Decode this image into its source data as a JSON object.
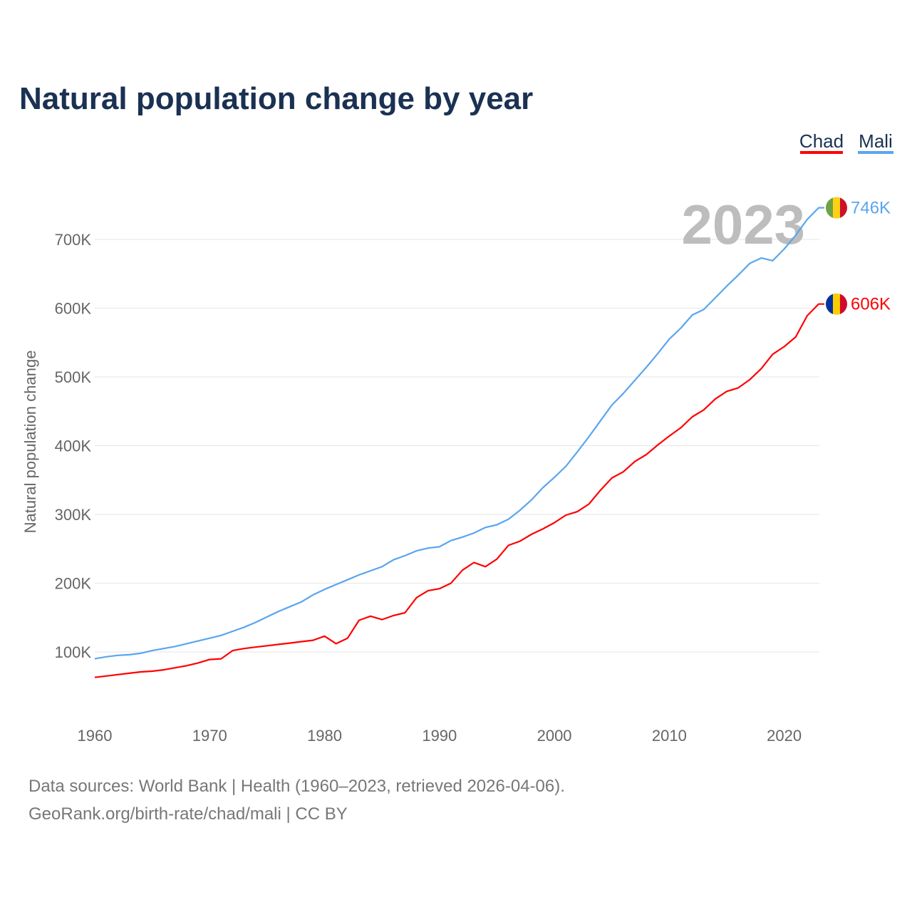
{
  "chart_data": {
    "type": "line",
    "title": "Natural population change by year",
    "xlabel": "",
    "ylabel": "Natural population change",
    "xlim": [
      1960,
      2023
    ],
    "ylim": [
      0,
      760000
    ],
    "x_ticks": [
      1960,
      1970,
      1980,
      1990,
      2000,
      2010,
      2020
    ],
    "y_ticks": [
      100000,
      200000,
      300000,
      400000,
      500000,
      600000,
      700000
    ],
    "y_tick_labels": [
      "100K",
      "200K",
      "300K",
      "400K",
      "500K",
      "600K",
      "700K"
    ],
    "x_tick_labels": [
      "1960",
      "1970",
      "1980",
      "1990",
      "2000",
      "2010",
      "2020"
    ],
    "grid": "horizontal",
    "legend_position": "top-right",
    "year_watermark": "2023",
    "start_year": 1960,
    "series": [
      {
        "name": "Chad",
        "color": "#ff0000",
        "end_label": "606K",
        "flag_colors": [
          "#0033a0",
          "#fecb00",
          "#d00a2e"
        ],
        "values": [
          63000,
          65000,
          67000,
          69000,
          71000,
          72000,
          74000,
          77000,
          80000,
          84000,
          89000,
          90000,
          102000,
          105000,
          107000,
          109000,
          111000,
          113000,
          115000,
          117000,
          123000,
          112000,
          120000,
          146000,
          152000,
          147000,
          153000,
          157000,
          179000,
          189000,
          192000,
          200000,
          219000,
          230000,
          224000,
          235000,
          255000,
          261000,
          271000,
          279000,
          288000,
          299000,
          304000,
          315000,
          335000,
          353000,
          362000,
          377000,
          387000,
          401000,
          414000,
          426000,
          442000,
          452000,
          468000,
          479000,
          484000,
          496000,
          512000,
          533000,
          544000,
          558000,
          589000,
          606000
        ]
      },
      {
        "name": "Mali",
        "color": "#5aa5ef",
        "end_label": "746K",
        "flag_colors": [
          "#6ea244",
          "#fcd116",
          "#ce1126"
        ],
        "values": [
          90000,
          93000,
          95000,
          96000,
          98000,
          102000,
          105000,
          108000,
          112000,
          116000,
          120000,
          124000,
          130000,
          136000,
          143000,
          151000,
          159000,
          166000,
          173000,
          183000,
          191000,
          198000,
          205000,
          212000,
          218000,
          224000,
          234000,
          240000,
          247000,
          251000,
          253000,
          262000,
          267000,
          273000,
          281000,
          285000,
          293000,
          306000,
          321000,
          339000,
          354000,
          370000,
          391000,
          413000,
          436000,
          459000,
          476000,
          495000,
          514000,
          534000,
          555000,
          571000,
          590000,
          598000,
          615000,
          632000,
          648000,
          665000,
          673000,
          669000,
          686000,
          706000,
          729000,
          746000
        ]
      }
    ]
  },
  "footer": {
    "line1": "Data sources: World Bank | Health (1960–2023, retrieved 2026-04-06).",
    "line2": "GeoRank.org/birth-rate/chad/mali | CC BY"
  }
}
